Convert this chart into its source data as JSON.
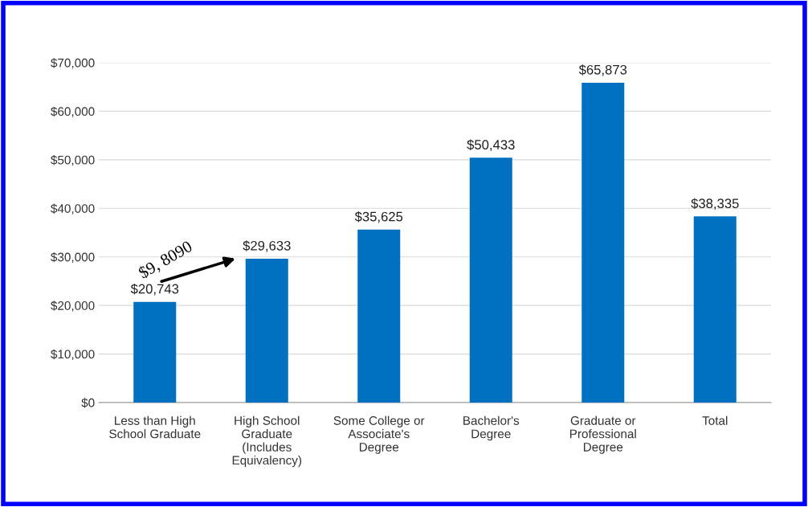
{
  "chart_data": {
    "type": "bar",
    "categories": [
      "Less than High\nSchool Graduate",
      "High School\nGraduate\n(Includes\nEquivalency)",
      "Some College or\nAssociate's\nDegree",
      "Bachelor's\nDegree",
      "Graduate or\nProfessional\nDegree",
      "Total"
    ],
    "values": [
      20743,
      29633,
      35625,
      50433,
      65873,
      38335
    ],
    "color": "#0070c0",
    "ylim": [
      0,
      70000
    ],
    "yticks": [
      {
        "value": 0,
        "label": "$0"
      },
      {
        "value": 10000,
        "label": "$10,000"
      },
      {
        "value": 20000,
        "label": "$20,000"
      },
      {
        "value": 30000,
        "label": "$30,000"
      },
      {
        "value": 40000,
        "label": "$40,000"
      },
      {
        "value": 50000,
        "label": "$50,000"
      },
      {
        "value": 60000,
        "label": "$60,000"
      },
      {
        "value": 70000,
        "label": "$70,000"
      }
    ],
    "value_labels": [
      "$20,743",
      "$29,633",
      "$35,625",
      "$50,433",
      "$65,873",
      "$38,335"
    ],
    "annotations": [
      "$9, 8090"
    ],
    "grid": "y"
  }
}
